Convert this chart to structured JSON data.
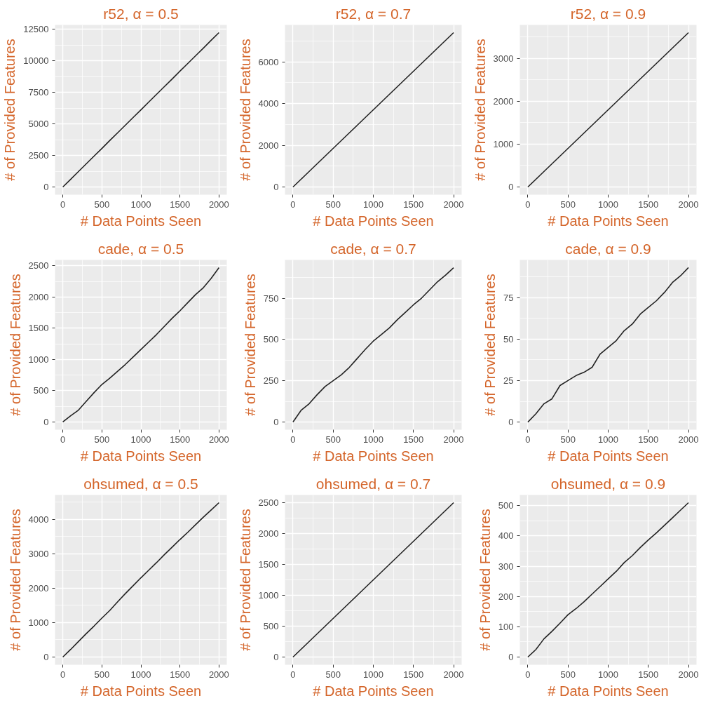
{
  "chart_data": [
    {
      "type": "line",
      "title": "r52, α = 0.5",
      "xlabel": "# Data Points Seen",
      "ylabel": "# of Provided Features",
      "x": [
        0,
        100,
        200,
        300,
        400,
        500,
        600,
        700,
        800,
        900,
        1000,
        1100,
        1200,
        1300,
        1400,
        1500,
        1600,
        1700,
        1800,
        1900,
        2000
      ],
      "series": [
        {
          "color": "#222222",
          "values": [
            0,
            610,
            1225,
            1840,
            2450,
            3060,
            3680,
            4290,
            4900,
            5510,
            6120,
            6740,
            7350,
            7960,
            8570,
            9190,
            9800,
            10410,
            11020,
            11640,
            12250
          ]
        }
      ],
      "xlim": [
        -100,
        2100
      ],
      "ylim": [
        -610,
        12860
      ],
      "xticks": [
        0,
        500,
        1000,
        1500,
        2000
      ],
      "yticks": [
        0,
        2500,
        5000,
        7500,
        10000,
        12500
      ],
      "grid": true
    },
    {
      "type": "line",
      "title": "r52, α = 0.7",
      "xlabel": "# Data Points Seen",
      "ylabel": "# of Provided Features",
      "x": [
        0,
        100,
        200,
        300,
        400,
        500,
        600,
        700,
        800,
        900,
        1000,
        1100,
        1200,
        1300,
        1400,
        1500,
        1600,
        1700,
        1800,
        1900,
        2000
      ],
      "series": [
        {
          "color": "#222222",
          "values": [
            0,
            370,
            740,
            1110,
            1480,
            1850,
            2220,
            2590,
            2960,
            3330,
            3700,
            4070,
            4440,
            4810,
            5180,
            5550,
            5920,
            6290,
            6660,
            7030,
            7400
          ]
        }
      ],
      "xlim": [
        -100,
        2100
      ],
      "ylim": [
        -370,
        7770
      ],
      "xticks": [
        0,
        500,
        1000,
        1500,
        2000
      ],
      "yticks": [
        0,
        2000,
        4000,
        6000
      ],
      "grid": true
    },
    {
      "type": "line",
      "title": "r52, α = 0.9",
      "xlabel": "# Data Points Seen",
      "ylabel": "# of Provided Features",
      "x": [
        0,
        100,
        200,
        300,
        400,
        500,
        600,
        700,
        800,
        900,
        1000,
        1100,
        1200,
        1300,
        1400,
        1500,
        1600,
        1700,
        1800,
        1900,
        2000
      ],
      "series": [
        {
          "color": "#222222",
          "values": [
            0,
            180,
            360,
            540,
            720,
            900,
            1080,
            1260,
            1440,
            1620,
            1800,
            1980,
            2160,
            2340,
            2520,
            2700,
            2880,
            3060,
            3240,
            3420,
            3600
          ]
        }
      ],
      "xlim": [
        -100,
        2100
      ],
      "ylim": [
        -180,
        3780
      ],
      "xticks": [
        0,
        500,
        1000,
        1500,
        2000
      ],
      "yticks": [
        0,
        1000,
        2000,
        3000
      ],
      "grid": true
    },
    {
      "type": "line",
      "title": "cade, α = 0.5",
      "xlabel": "# Data Points Seen",
      "ylabel": "# of Provided Features",
      "x": [
        0,
        100,
        200,
        300,
        400,
        500,
        600,
        700,
        800,
        900,
        1000,
        1100,
        1200,
        1300,
        1400,
        1500,
        1600,
        1700,
        1800,
        1900,
        2000
      ],
      "series": [
        {
          "color": "#222222",
          "values": [
            0,
            100,
            190,
            330,
            470,
            600,
            700,
            810,
            920,
            1040,
            1160,
            1280,
            1400,
            1530,
            1660,
            1780,
            1910,
            2040,
            2150,
            2300,
            2470
          ]
        }
      ],
      "xlim": [
        -100,
        2100
      ],
      "ylim": [
        -124,
        2594
      ],
      "xticks": [
        0,
        500,
        1000,
        1500,
        2000
      ],
      "yticks": [
        0,
        500,
        1000,
        1500,
        2000,
        2500
      ],
      "grid": true
    },
    {
      "type": "line",
      "title": "cade, α = 0.7",
      "xlabel": "# Data Points Seen",
      "ylabel": "# of Provided Features",
      "x": [
        0,
        100,
        200,
        300,
        400,
        500,
        600,
        700,
        800,
        900,
        1000,
        1100,
        1200,
        1300,
        1400,
        1500,
        1600,
        1700,
        1800,
        1900,
        2000
      ],
      "series": [
        {
          "color": "#222222",
          "values": [
            0,
            70,
            110,
            165,
            215,
            250,
            285,
            330,
            385,
            440,
            490,
            530,
            570,
            620,
            665,
            710,
            750,
            800,
            850,
            890,
            935
          ]
        }
      ],
      "xlim": [
        -100,
        2100
      ],
      "ylim": [
        -47,
        982
      ],
      "xticks": [
        0,
        500,
        1000,
        1500,
        2000
      ],
      "yticks": [
        0,
        250,
        500,
        750
      ],
      "grid": true
    },
    {
      "type": "line",
      "title": "cade, α = 0.9",
      "xlabel": "# Data Points Seen",
      "ylabel": "# of Provided Features",
      "x": [
        0,
        100,
        200,
        300,
        400,
        500,
        600,
        700,
        800,
        900,
        1000,
        1100,
        1200,
        1300,
        1400,
        1500,
        1600,
        1700,
        1800,
        1900,
        2000
      ],
      "series": [
        {
          "color": "#222222",
          "values": [
            0,
            5,
            11,
            14,
            22,
            25,
            28,
            30,
            33,
            41,
            45,
            49,
            55,
            59,
            65,
            69,
            73,
            78,
            84,
            88,
            93
          ]
        }
      ],
      "xlim": [
        -100,
        2100
      ],
      "ylim": [
        -4.6,
        97.6
      ],
      "xticks": [
        0,
        500,
        1000,
        1500,
        2000
      ],
      "yticks": [
        0,
        25,
        50,
        75
      ],
      "grid": true
    },
    {
      "type": "line",
      "title": "ohsumed, α = 0.5",
      "xlabel": "# Data Points Seen",
      "ylabel": "# of Provided Features",
      "x": [
        0,
        100,
        200,
        300,
        400,
        500,
        600,
        700,
        800,
        900,
        1000,
        1100,
        1200,
        1300,
        1400,
        1500,
        1600,
        1700,
        1800,
        1900,
        2000
      ],
      "series": [
        {
          "color": "#222222",
          "values": [
            0,
            220,
            450,
            680,
            900,
            1130,
            1350,
            1600,
            1840,
            2070,
            2300,
            2520,
            2740,
            2970,
            3190,
            3410,
            3620,
            3840,
            4060,
            4270,
            4480
          ]
        }
      ],
      "xlim": [
        -100,
        2100
      ],
      "ylim": [
        -224,
        4704
      ],
      "xticks": [
        0,
        500,
        1000,
        1500,
        2000
      ],
      "yticks": [
        0,
        1000,
        2000,
        3000,
        4000
      ],
      "grid": true
    },
    {
      "type": "line",
      "title": "ohsumed, α = 0.7",
      "xlabel": "# Data Points Seen",
      "ylabel": "# of Provided Features",
      "x": [
        0,
        100,
        200,
        300,
        400,
        500,
        600,
        700,
        800,
        900,
        1000,
        1100,
        1200,
        1300,
        1400,
        1500,
        1600,
        1700,
        1800,
        1900,
        2000
      ],
      "series": [
        {
          "color": "#222222",
          "values": [
            0,
            125,
            250,
            375,
            500,
            625,
            750,
            875,
            1000,
            1125,
            1250,
            1375,
            1500,
            1625,
            1750,
            1875,
            2000,
            2125,
            2250,
            2375,
            2500
          ]
        }
      ],
      "xlim": [
        -100,
        2100
      ],
      "ylim": [
        -125,
        2625
      ],
      "xticks": [
        0,
        500,
        1000,
        1500,
        2000
      ],
      "yticks": [
        0,
        500,
        1000,
        1500,
        2000,
        2500
      ],
      "grid": true
    },
    {
      "type": "line",
      "title": "ohsumed, α = 0.9",
      "xlabel": "# Data Points Seen",
      "ylabel": "# of Provided Features",
      "x": [
        0,
        100,
        200,
        300,
        400,
        500,
        600,
        700,
        800,
        900,
        1000,
        1100,
        1200,
        1300,
        1400,
        1500,
        1600,
        1700,
        1800,
        1900,
        2000
      ],
      "series": [
        {
          "color": "#222222",
          "values": [
            0,
            25,
            60,
            85,
            112,
            140,
            160,
            183,
            208,
            233,
            258,
            283,
            312,
            335,
            362,
            387,
            410,
            435,
            460,
            485,
            510
          ]
        }
      ],
      "xlim": [
        -100,
        2100
      ],
      "ylim": [
        -25.5,
        535.5
      ],
      "xticks": [
        0,
        500,
        1000,
        1500,
        2000
      ],
      "yticks": [
        0,
        100,
        200,
        300,
        400,
        500
      ],
      "grid": true
    }
  ]
}
